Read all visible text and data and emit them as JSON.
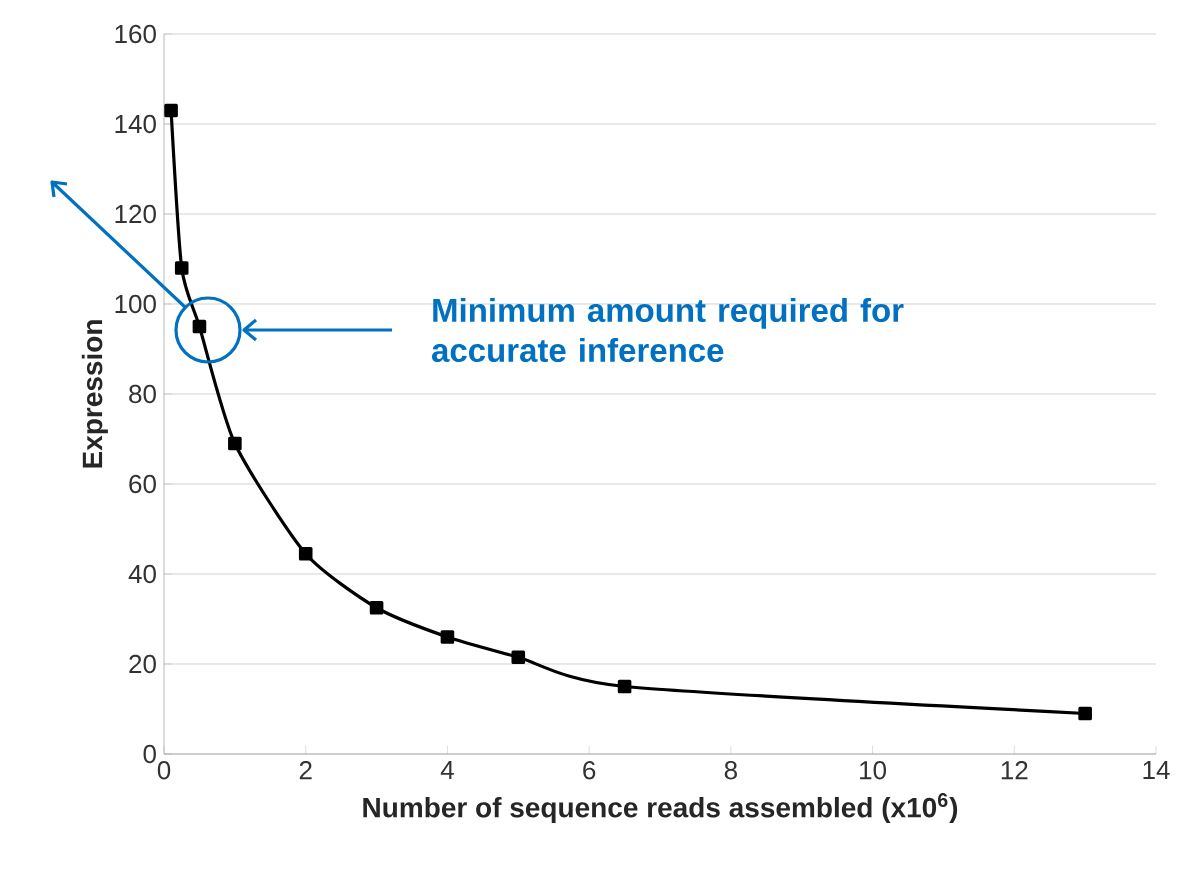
{
  "chart_data": {
    "type": "line",
    "xlabel": "Number of sequence reads assembled (x10$^{6}$)",
    "ylabel": "Expression",
    "x": [
      0.1,
      0.25,
      0.5,
      1,
      2,
      3,
      4,
      5,
      6.5,
      13
    ],
    "series": [
      {
        "color": "#000000",
        "values": [
          143,
          108,
          95,
          69,
          44.5,
          32.5,
          26,
          21.5,
          15,
          9
        ]
      }
    ],
    "xlim": [
      0,
      14
    ],
    "ylim": [
      0,
      160
    ],
    "xticks": [
      0,
      2,
      4,
      6,
      8,
      10,
      12,
      14
    ],
    "yticks": [
      0,
      20,
      40,
      60,
      80,
      100,
      120,
      140,
      160
    ],
    "grid": "y",
    "marker": "square",
    "line_style": "solid",
    "annotations": [
      "Minimum amount required for accurate inference"
    ]
  }
}
